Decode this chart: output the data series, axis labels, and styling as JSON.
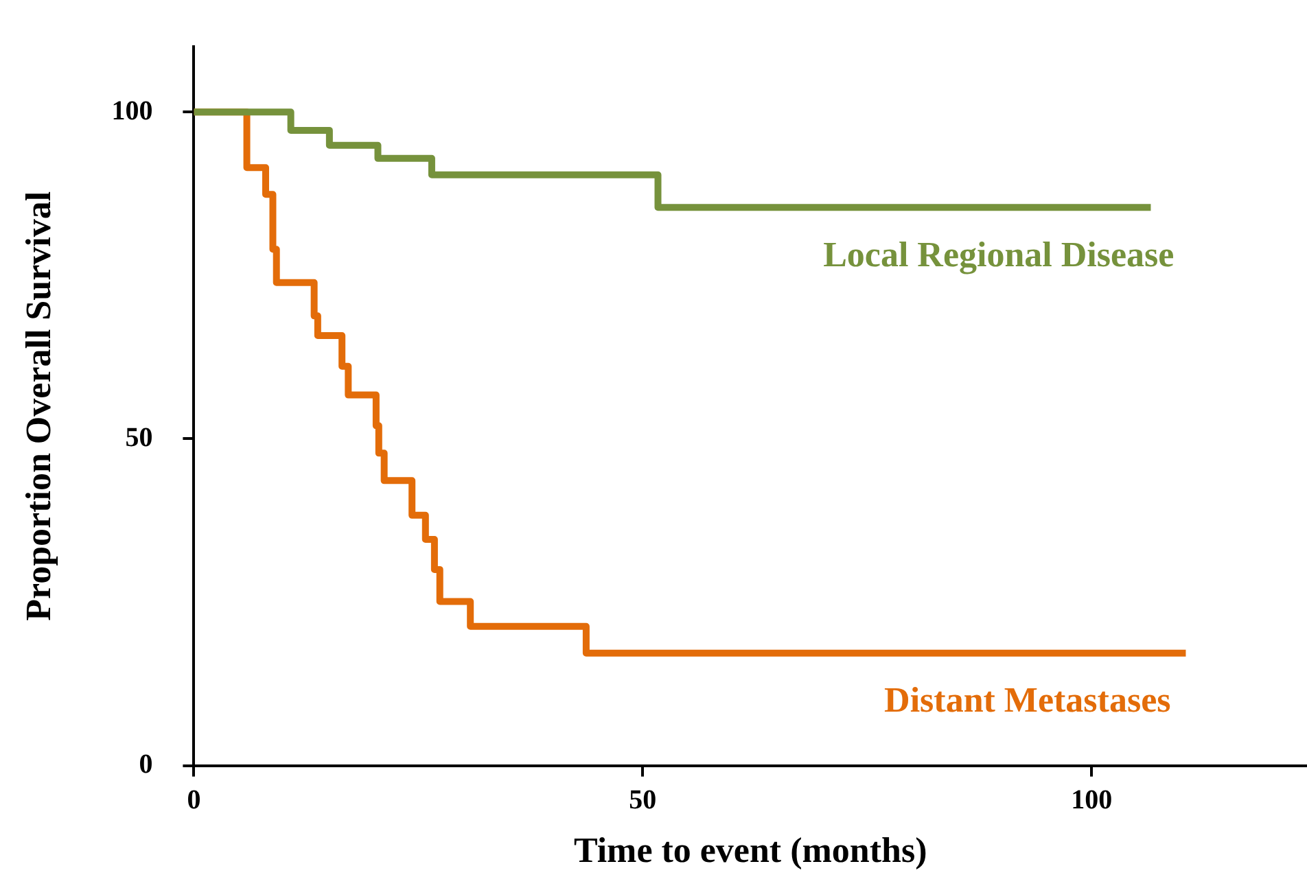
{
  "chart_data": {
    "type": "step",
    "xlabel": "Time to event (months)",
    "ylabel": "Proportion Overall Survival",
    "xlim": [
      0,
      124
    ],
    "ylim": [
      0,
      110
    ],
    "xticks": [
      0,
      50,
      100
    ],
    "yticks": [
      0,
      50,
      100
    ],
    "grid": false,
    "legend": false,
    "marker": "none",
    "series": [
      {
        "name": "Local Regional Disease",
        "color": "#76923c",
        "x": [
          0,
          10.8,
          15.1,
          20.5,
          26.5,
          51.7,
          106.6
        ],
        "values": [
          100,
          97.2,
          94.9,
          92.9,
          90.4,
          85.4,
          85.4
        ]
      },
      {
        "name": "Distant Metastases",
        "color": "#e36c09",
        "x": [
          0,
          5.9,
          8.0,
          8.8,
          9.2,
          13.4,
          13.8,
          16.5,
          17.2,
          20.3,
          20.6,
          21.2,
          24.3,
          25.8,
          26.8,
          27.4,
          30.8,
          43.7,
          110.5
        ],
        "values": [
          100,
          91.5,
          87.4,
          79.0,
          73.9,
          68.8,
          65.8,
          61.1,
          56.7,
          52.0,
          47.8,
          43.6,
          38.3,
          34.6,
          30.0,
          25.1,
          21.3,
          17.2,
          17.2
        ]
      }
    ]
  }
}
